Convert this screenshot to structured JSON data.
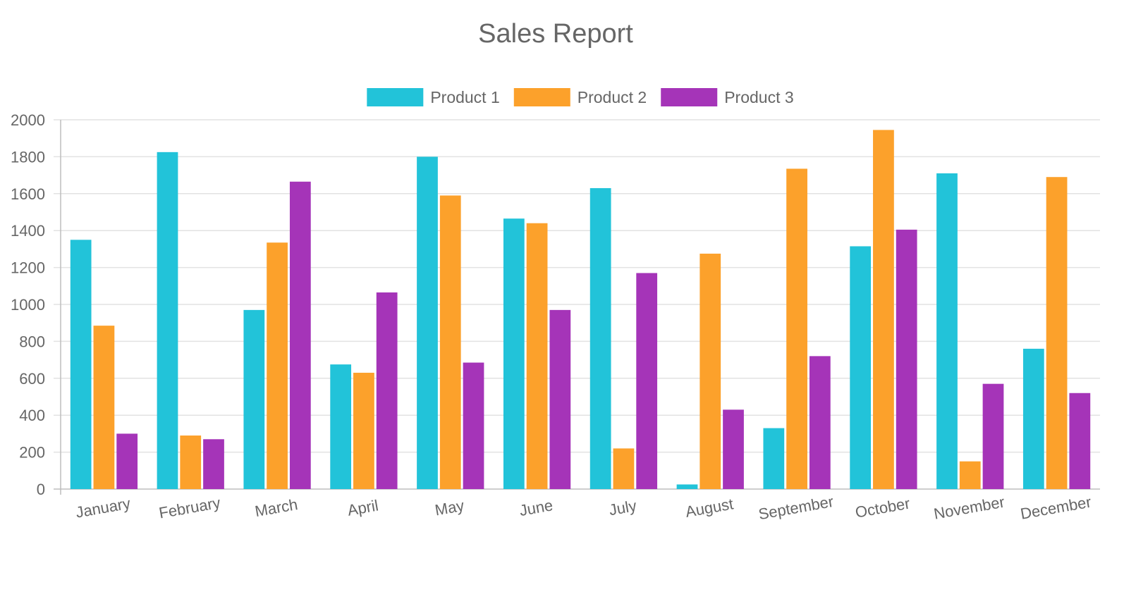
{
  "chart_data": {
    "type": "bar",
    "title": "Sales Report",
    "categories": [
      "January",
      "February",
      "March",
      "April",
      "May",
      "June",
      "July",
      "August",
      "September",
      "October",
      "November",
      "December"
    ],
    "series": [
      {
        "name": "Product 1",
        "color": "#22c3d9",
        "values": [
          1350,
          1825,
          970,
          675,
          1800,
          1465,
          1630,
          25,
          330,
          1315,
          1710,
          760
        ]
      },
      {
        "name": "Product 2",
        "color": "#fca12b",
        "values": [
          885,
          290,
          1335,
          630,
          1590,
          1440,
          220,
          1275,
          1735,
          1945,
          150,
          1690
        ]
      },
      {
        "name": "Product 3",
        "color": "#a534b8",
        "values": [
          300,
          270,
          1665,
          1065,
          685,
          970,
          1170,
          430,
          720,
          1405,
          570,
          520
        ]
      }
    ],
    "ylim": [
      0,
      2000
    ],
    "yticks": [
      0,
      200,
      400,
      600,
      800,
      1000,
      1200,
      1400,
      1600,
      1800,
      2000
    ],
    "xlabel": "",
    "ylabel": "",
    "grid": true,
    "legend": "top-center"
  }
}
